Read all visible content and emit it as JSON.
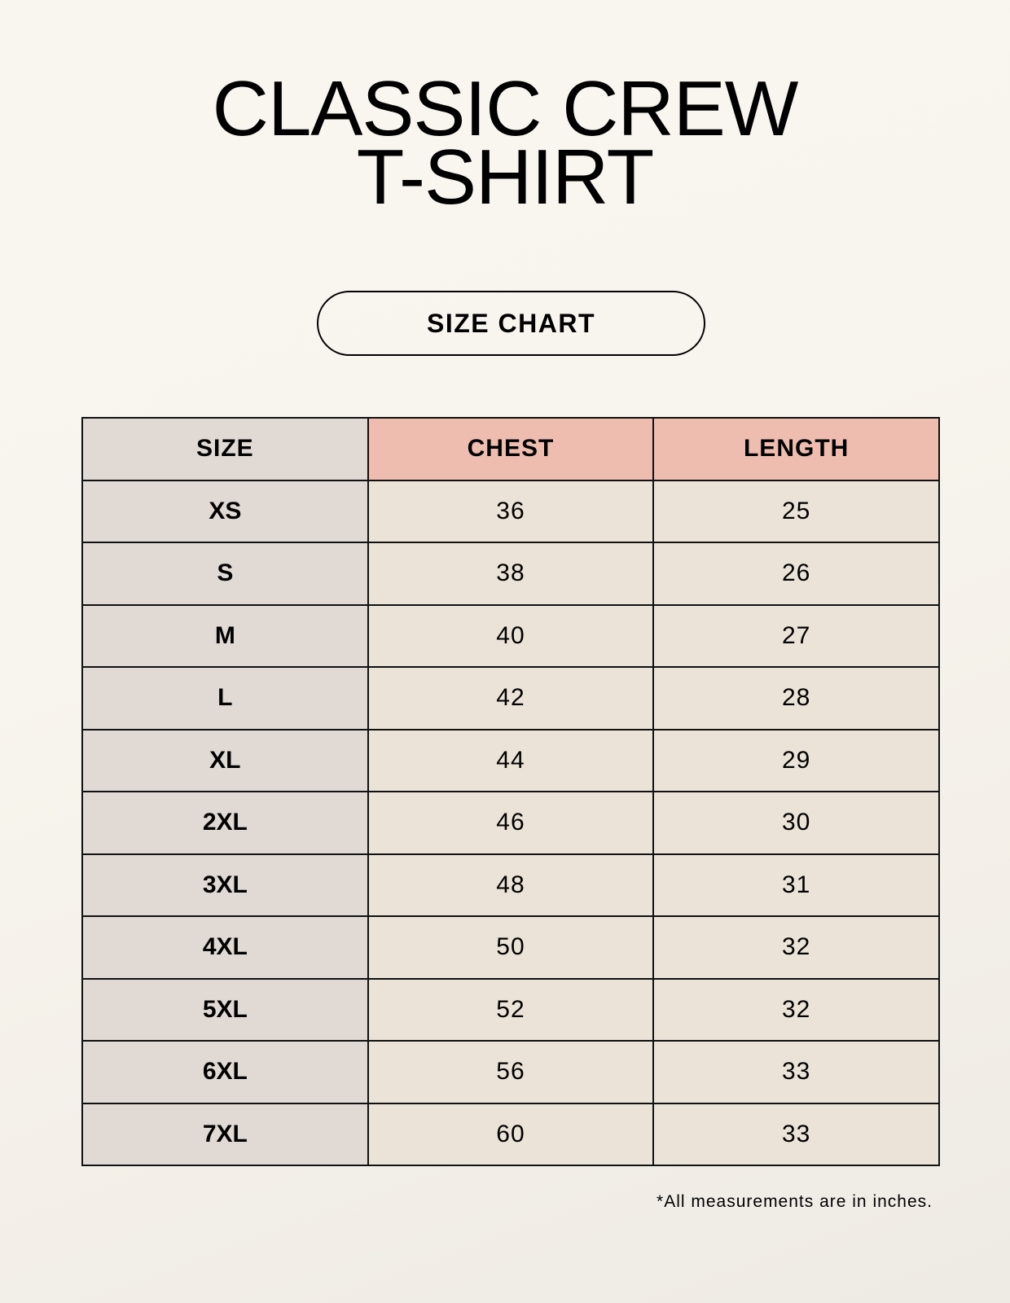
{
  "title_line1": "CLASSIC CREW",
  "title_line2": "T-SHIRT",
  "badge": "SIZE CHART",
  "table": {
    "headers": [
      "SIZE",
      "CHEST",
      "LENGTH"
    ],
    "rows": [
      [
        "XS",
        "36",
        "25"
      ],
      [
        "S",
        "38",
        "26"
      ],
      [
        "M",
        "40",
        "27"
      ],
      [
        "L",
        "42",
        "28"
      ],
      [
        "XL",
        "44",
        "29"
      ],
      [
        "2XL",
        "46",
        "30"
      ],
      [
        "3XL",
        "48",
        "31"
      ],
      [
        "4XL",
        "50",
        "32"
      ],
      [
        "5XL",
        "52",
        "32"
      ],
      [
        "6XL",
        "56",
        "33"
      ],
      [
        "7XL",
        "60",
        "33"
      ]
    ]
  },
  "footnote": "*All measurements are in inches.",
  "colors": {
    "size_column": "#e1d9d3",
    "header_accent": "#efbdaf",
    "value_cells": "#ebe3d8"
  }
}
